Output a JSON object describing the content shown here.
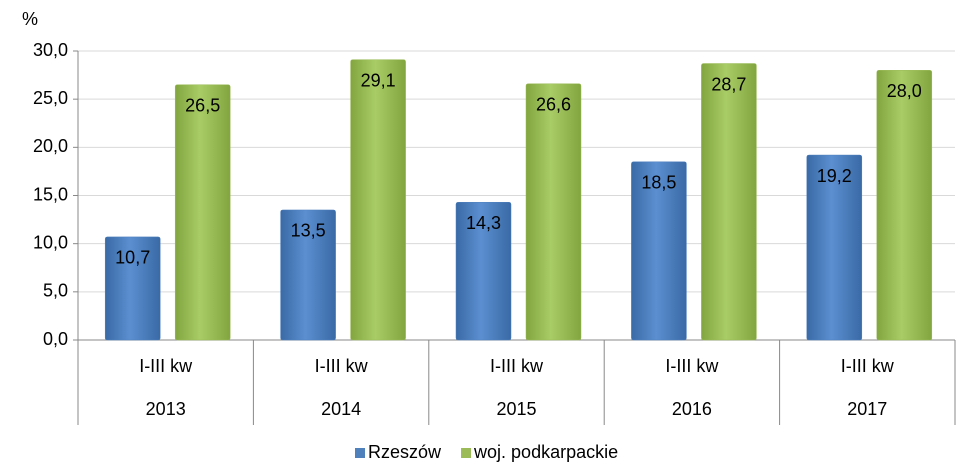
{
  "chart_data": {
    "type": "bar",
    "y_unit": "%",
    "categories": [
      "2013",
      "2014",
      "2015",
      "2016",
      "2017"
    ],
    "subcategories": [
      "I-III kw",
      "I-III kw",
      "I-III kw",
      "I-III kw",
      "I-III kw"
    ],
    "series": [
      {
        "name": "Rzeszów",
        "color": "#4f81bd",
        "values": [
          10.7,
          13.5,
          14.3,
          18.5,
          19.2
        ],
        "value_labels": [
          "10,7",
          "13,5",
          "14,3",
          "18,5",
          "19,2"
        ]
      },
      {
        "name": "woj. podkarpackie",
        "color": "#9bbb59",
        "values": [
          26.5,
          29.1,
          26.6,
          28.7,
          28.0
        ],
        "value_labels": [
          "26,5",
          "29,1",
          "26,6",
          "28,7",
          "28,0"
        ]
      }
    ],
    "ylim": [
      0,
      30
    ],
    "yticks": [
      {
        "value": 0,
        "label": "0,0"
      },
      {
        "value": 5,
        "label": "5,0"
      },
      {
        "value": 10,
        "label": "10,0"
      },
      {
        "value": 15,
        "label": "15,0"
      },
      {
        "value": 20,
        "label": "20,0"
      },
      {
        "value": 25,
        "label": "25,0"
      },
      {
        "value": 30,
        "label": "30,0"
      }
    ],
    "grid": true,
    "legend": "bottom"
  }
}
